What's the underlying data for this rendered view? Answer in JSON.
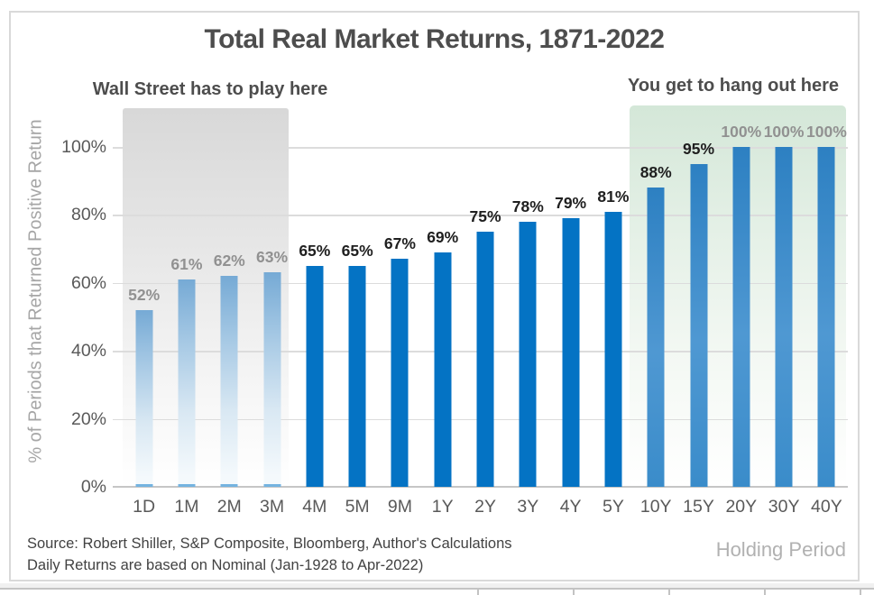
{
  "title": "Total Real Market Returns, 1871-2022",
  "annotations": {
    "wall_street": "Wall Street has to play here",
    "hang_out": "You get to hang out here"
  },
  "axes": {
    "y_title": "% of Periods that Returned Positive Return",
    "x_title": "Holding Period",
    "y_tick_labels": [
      "0%",
      "20%",
      "40%",
      "60%",
      "80%",
      "100%"
    ]
  },
  "footer": {
    "source_line1": "Source: Robert Shiller, S&P Composite, Bloomberg, Author's Calculations",
    "source_line2": "Daily Returns are based on Nominal (Jan-1928 to Apr-2022)"
  },
  "colors": {
    "bar_solid": "#0473c4",
    "bar_gradient_top": "#2d80c2",
    "bar_gradient_mid": "#4f98d2",
    "bar_gradient_bottom": "#3a8cca",
    "bar_fade_top": "#76aad5",
    "bar_fade_sliver": "#74b3e0",
    "box_gray_top": "#d8d8d8",
    "box_green_top": "#d4e7d8",
    "label_dark": "#1f1f1f",
    "label_gray": "#919191",
    "axis_text": "#595959",
    "muted_text": "#a6a6a6",
    "grid": "#dcdcdc",
    "frame_border": "#d9d9d9"
  },
  "chart_data": {
    "type": "bar",
    "title": "Total Real Market Returns, 1871-2022",
    "categories": [
      "1D",
      "1M",
      "2M",
      "3M",
      "4M",
      "5M",
      "9M",
      "1Y",
      "2Y",
      "3Y",
      "4Y",
      "5Y",
      "10Y",
      "15Y",
      "20Y",
      "30Y",
      "40Y"
    ],
    "values": [
      52,
      61,
      62,
      63,
      65,
      65,
      67,
      69,
      75,
      78,
      79,
      81,
      88,
      95,
      100,
      100,
      100
    ],
    "data_labels": [
      "52%",
      "61%",
      "62%",
      "63%",
      "65%",
      "65%",
      "67%",
      "69%",
      "75%",
      "78%",
      "79%",
      "81%",
      "88%",
      "95%",
      "100%",
      "100%",
      "100%"
    ],
    "bar_styles": [
      "fade",
      "fade",
      "fade",
      "fade",
      "solid",
      "solid",
      "solid",
      "solid",
      "solid",
      "solid",
      "solid",
      "solid",
      "grad",
      "grad",
      "grad",
      "grad",
      "grad"
    ],
    "label_colors": [
      "gray",
      "gray",
      "gray",
      "gray",
      "dark",
      "dark",
      "dark",
      "dark",
      "dark",
      "dark",
      "dark",
      "dark",
      "dark",
      "dark",
      "gray",
      "gray",
      "gray"
    ],
    "xlabel": "Holding Period",
    "ylabel": "% of Periods that Returned Positive Return",
    "ylim": [
      0,
      100
    ],
    "yticks": [
      0,
      20,
      40,
      60,
      80,
      100
    ],
    "grid": true,
    "legend": false,
    "annotations": [
      {
        "text": "Wall Street has to play here",
        "covers_categories": [
          "1D",
          "1M",
          "2M",
          "3M"
        ],
        "box_color": "gray"
      },
      {
        "text": "You get to hang out here",
        "covers_categories": [
          "10Y",
          "15Y",
          "20Y",
          "30Y",
          "40Y"
        ],
        "box_color": "green"
      }
    ]
  }
}
